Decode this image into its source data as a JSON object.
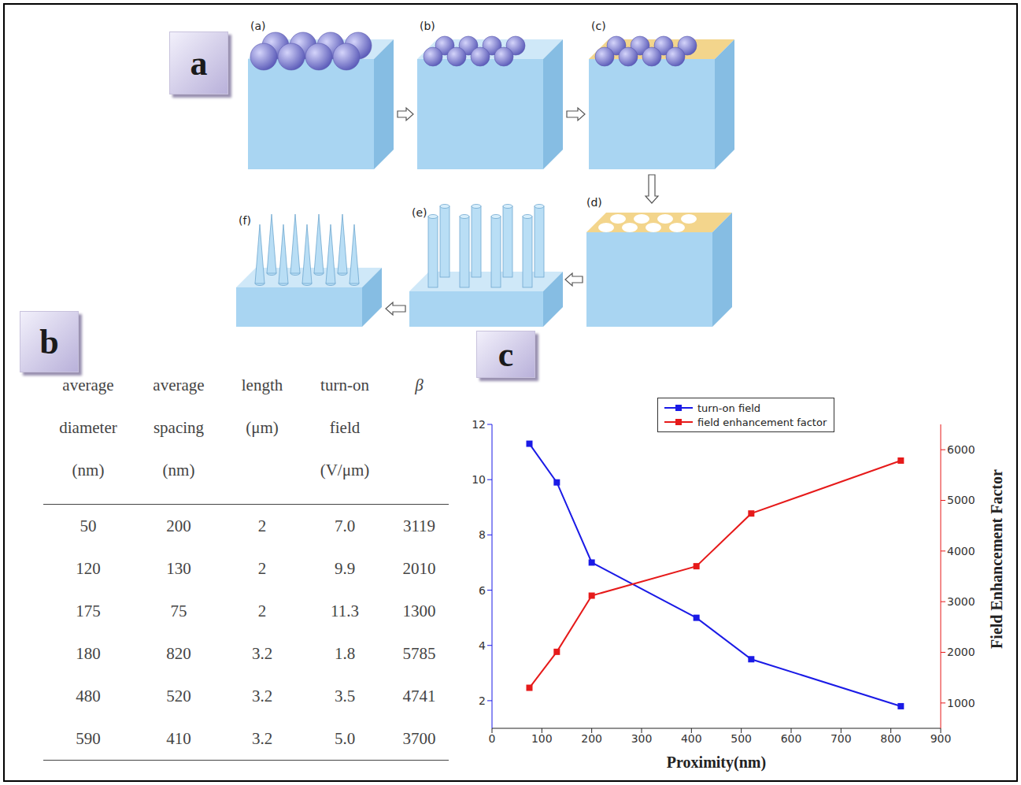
{
  "panel_letters": [
    "a",
    "b",
    "c"
  ],
  "diagram": {
    "steps": [
      "(a)",
      "(b)",
      "(c)",
      "(d)",
      "(e)",
      "(f)"
    ]
  },
  "table": {
    "header": [
      [
        "average",
        "diameter",
        "(nm)"
      ],
      [
        "average",
        "spacing",
        "(nm)"
      ],
      [
        "length",
        "(μm)"
      ],
      [
        "turn-on",
        "field",
        "(V/μm)"
      ],
      [
        "β"
      ]
    ],
    "rows": [
      [
        "50",
        "200",
        "2",
        "7.0",
        "3119"
      ],
      [
        "120",
        "130",
        "2",
        "9.9",
        "2010"
      ],
      [
        "175",
        "75",
        "2",
        "11.3",
        "1300"
      ],
      [
        "180",
        "820",
        "3.2",
        "1.8",
        "5785"
      ],
      [
        "480",
        "520",
        "3.2",
        "3.5",
        "4741"
      ],
      [
        "590",
        "410",
        "3.2",
        "5.0",
        "3700"
      ]
    ]
  },
  "chart_data": {
    "type": "line",
    "x": [
      75,
      130,
      200,
      410,
      520,
      820
    ],
    "xlim": [
      0,
      900
    ],
    "xticks": [
      0,
      100,
      200,
      300,
      400,
      500,
      600,
      700,
      800,
      900
    ],
    "xlabel": "Proximity(nm)",
    "ylim": [
      1,
      12
    ],
    "yticks": [
      2,
      4,
      6,
      8,
      10,
      12
    ],
    "y2lim": [
      500,
      6500
    ],
    "y2ticks": [
      1000,
      2000,
      3000,
      4000,
      5000,
      6000
    ],
    "y2label": "Field Enhancement Factor",
    "legend": "upper right",
    "series": [
      {
        "name": "turn-on field",
        "color": "#1a1ae6",
        "marker": "square",
        "values": [
          11.3,
          9.9,
          7.0,
          5.0,
          3.5,
          1.8
        ]
      },
      {
        "name": "field enhancement factor",
        "color": "#e61a1a",
        "marker": "square",
        "axis": "y2",
        "values": [
          1300,
          2010,
          3119,
          3700,
          4741,
          5785
        ]
      }
    ]
  }
}
